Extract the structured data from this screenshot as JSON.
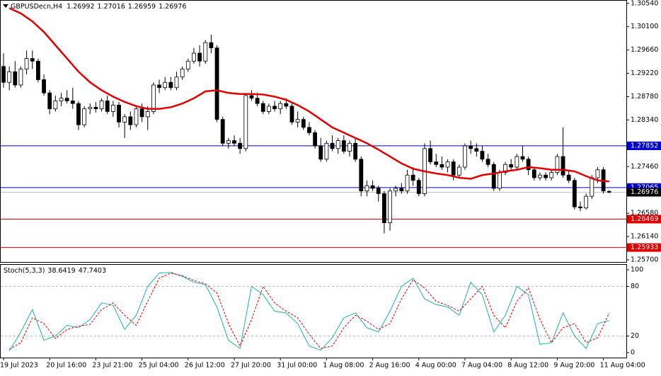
{
  "chart_data": {
    "type": "candlestick",
    "title": "GBPUSDecn,H4",
    "categories": [
      "19 Jul 2023",
      null,
      null,
      null,
      null,
      null,
      null,
      null,
      "20 Jul 16:00",
      null,
      null,
      null,
      null,
      null,
      null,
      null,
      "23 Jul 21:00",
      null,
      null,
      null,
      null,
      null,
      null,
      null,
      "25 Jul 04:00",
      null,
      null,
      null,
      null,
      null,
      null,
      null,
      "26 Jul 12:00",
      null,
      null,
      null,
      null,
      null,
      null,
      null,
      "27 Jul 20:00",
      null,
      null,
      null,
      null,
      null,
      null,
      null,
      "31 Jul 00:00",
      null,
      null,
      null,
      null,
      null,
      null,
      null,
      "1 Aug 08:00",
      null,
      null,
      null,
      null,
      null,
      null,
      null,
      "2 Aug 16:00",
      null,
      null,
      null,
      null,
      null,
      null,
      null,
      "4 Aug 00:00",
      null,
      null,
      null,
      null,
      null,
      null,
      null,
      "7 Aug 04:00",
      null,
      null,
      null,
      null,
      null,
      null,
      null,
      "8 Aug 12:00",
      null,
      null,
      null,
      null,
      null,
      null,
      null,
      "9 Aug 20:00",
      null,
      null,
      null,
      null,
      null,
      null,
      null,
      "11 Aug 04:00",
      null
    ],
    "ohlc": [
      [
        1.2935,
        1.296,
        1.2895,
        1.2905
      ],
      [
        1.2905,
        1.2935,
        1.289,
        1.2925
      ],
      [
        1.2925,
        1.2945,
        1.2895,
        1.29
      ],
      [
        1.29,
        1.2935,
        1.2895,
        1.293
      ],
      [
        1.293,
        1.2965,
        1.292,
        1.295
      ],
      [
        1.295,
        1.2965,
        1.293,
        1.2945
      ],
      [
        1.2945,
        1.295,
        1.2905,
        1.291
      ],
      [
        1.291,
        1.292,
        1.288,
        1.2885
      ],
      [
        1.2885,
        1.289,
        1.2845,
        1.2855
      ],
      [
        1.2855,
        1.288,
        1.285,
        1.287
      ],
      [
        1.287,
        1.2885,
        1.286,
        1.2875
      ],
      [
        1.2875,
        1.289,
        1.2865,
        1.287
      ],
      [
        1.287,
        1.2895,
        1.2855,
        1.2865
      ],
      [
        1.2865,
        1.287,
        1.2815,
        1.2825
      ],
      [
        1.2825,
        1.286,
        1.282,
        1.2855
      ],
      [
        1.2855,
        1.2865,
        1.2845,
        1.2858
      ],
      [
        1.2858,
        1.2868,
        1.2848,
        1.2855
      ],
      [
        1.2855,
        1.2875,
        1.285,
        1.287
      ],
      [
        1.287,
        1.288,
        1.2845,
        1.285
      ],
      [
        1.285,
        1.287,
        1.284,
        1.2862
      ],
      [
        1.2862,
        1.2868,
        1.282,
        1.283
      ],
      [
        1.283,
        1.2845,
        1.28,
        1.284
      ],
      [
        1.284,
        1.285,
        1.2815,
        1.2825
      ],
      [
        1.2825,
        1.286,
        1.282,
        1.2855
      ],
      [
        1.2855,
        1.2865,
        1.283,
        1.284
      ],
      [
        1.284,
        1.286,
        1.2815,
        1.285
      ],
      [
        1.285,
        1.2905,
        1.2845,
        1.29
      ],
      [
        1.29,
        1.291,
        1.2885,
        1.2895
      ],
      [
        1.2895,
        1.2915,
        1.289,
        1.2905
      ],
      [
        1.2905,
        1.2915,
        1.289,
        1.2895
      ],
      [
        1.2895,
        1.2925,
        1.289,
        1.2915
      ],
      [
        1.2915,
        1.2935,
        1.291,
        1.293
      ],
      [
        1.293,
        1.295,
        1.2925,
        1.2945
      ],
      [
        1.2945,
        1.297,
        1.294,
        1.296
      ],
      [
        1.296,
        1.2975,
        1.2935,
        1.2945
      ],
      [
        1.2945,
        1.2985,
        1.294,
        1.298
      ],
      [
        1.298,
        1.2995,
        1.296,
        1.297
      ],
      [
        1.297,
        1.2975,
        1.283,
        1.2835
      ],
      [
        1.2835,
        1.284,
        1.2785,
        1.279
      ],
      [
        1.279,
        1.28,
        1.278,
        1.2795
      ],
      [
        1.2795,
        1.2805,
        1.2785,
        1.279
      ],
      [
        1.279,
        1.28,
        1.277,
        1.278
      ],
      [
        1.278,
        1.2885,
        1.2775,
        1.288
      ],
      [
        1.288,
        1.289,
        1.287,
        1.2875
      ],
      [
        1.2875,
        1.2885,
        1.286,
        1.2865
      ],
      [
        1.2865,
        1.287,
        1.2845,
        1.285
      ],
      [
        1.285,
        1.2865,
        1.2845,
        1.286
      ],
      [
        1.286,
        1.287,
        1.285,
        1.2855
      ],
      [
        1.2855,
        1.287,
        1.2845,
        1.2865
      ],
      [
        1.2865,
        1.2875,
        1.2855,
        1.286
      ],
      [
        1.286,
        1.2865,
        1.2825,
        1.283
      ],
      [
        1.283,
        1.285,
        1.282,
        1.2835
      ],
      [
        1.2835,
        1.284,
        1.2815,
        1.282
      ],
      [
        1.282,
        1.283,
        1.2805,
        1.281
      ],
      [
        1.281,
        1.2815,
        1.278,
        1.2785
      ],
      [
        1.2785,
        1.28,
        1.2755,
        1.276
      ],
      [
        1.276,
        1.2795,
        1.2755,
        1.279
      ],
      [
        1.279,
        1.2805,
        1.2775,
        1.278
      ],
      [
        1.278,
        1.28,
        1.277,
        1.2795
      ],
      [
        1.2795,
        1.2805,
        1.277,
        1.2775
      ],
      [
        1.2775,
        1.2795,
        1.2765,
        1.279
      ],
      [
        1.279,
        1.28,
        1.2755,
        1.276
      ],
      [
        1.276,
        1.2765,
        1.269,
        1.27
      ],
      [
        1.27,
        1.272,
        1.269,
        1.271
      ],
      [
        1.271,
        1.272,
        1.27,
        1.2705
      ],
      [
        1.2705,
        1.271,
        1.268,
        1.2695
      ],
      [
        1.2695,
        1.27,
        1.262,
        1.264
      ],
      [
        1.264,
        1.2705,
        1.2625,
        1.27
      ],
      [
        1.27,
        1.271,
        1.269,
        1.2705
      ],
      [
        1.2705,
        1.2715,
        1.2695,
        1.27
      ],
      [
        1.27,
        1.274,
        1.2695,
        1.273
      ],
      [
        1.273,
        1.2745,
        1.271,
        1.272
      ],
      [
        1.272,
        1.2725,
        1.269,
        1.2695
      ],
      [
        1.2695,
        1.279,
        1.269,
        1.278
      ],
      [
        1.278,
        1.2795,
        1.275,
        1.2755
      ],
      [
        1.2755,
        1.277,
        1.2745,
        1.275
      ],
      [
        1.275,
        1.2765,
        1.274,
        1.2745
      ],
      [
        1.2745,
        1.276,
        1.2735,
        1.2755
      ],
      [
        1.2755,
        1.276,
        1.272,
        1.273
      ],
      [
        1.273,
        1.275,
        1.2725,
        1.2745
      ],
      [
        1.2745,
        1.279,
        1.274,
        1.2785
      ],
      [
        1.2785,
        1.2795,
        1.277,
        1.278
      ],
      [
        1.278,
        1.279,
        1.2765,
        1.2775
      ],
      [
        1.2775,
        1.2785,
        1.2755,
        1.276
      ],
      [
        1.276,
        1.277,
        1.2745,
        1.275
      ],
      [
        1.275,
        1.2755,
        1.27,
        1.2705
      ],
      [
        1.2705,
        1.274,
        1.27,
        1.2735
      ],
      [
        1.2735,
        1.2755,
        1.273,
        1.275
      ],
      [
        1.275,
        1.276,
        1.274,
        1.2745
      ],
      [
        1.2745,
        1.277,
        1.274,
        1.2765
      ],
      [
        1.2765,
        1.2785,
        1.2755,
        1.276
      ],
      [
        1.276,
        1.2765,
        1.273,
        1.274
      ],
      [
        1.274,
        1.2745,
        1.272,
        1.2725
      ],
      [
        1.2725,
        1.2735,
        1.272,
        1.273
      ],
      [
        1.273,
        1.2735,
        1.272,
        1.2725
      ],
      [
        1.2725,
        1.274,
        1.272,
        1.2735
      ],
      [
        1.2735,
        1.277,
        1.273,
        1.2765
      ],
      [
        1.2765,
        1.282,
        1.2725,
        1.273
      ],
      [
        1.273,
        1.274,
        1.2715,
        1.272
      ],
      [
        1.272,
        1.2725,
        1.2665,
        1.267
      ],
      [
        1.267,
        1.268,
        1.2662,
        1.2668
      ],
      [
        1.2668,
        1.2695,
        1.2665,
        1.269
      ],
      [
        1.269,
        1.273,
        1.2685,
        1.2725
      ],
      [
        1.2725,
        1.2745,
        1.2715,
        1.274
      ],
      [
        1.274,
        1.2745,
        1.2695,
        1.27
      ],
      [
        1.26992,
        1.27016,
        1.26959,
        1.26976
      ]
    ],
    "up_color": "#ffffff",
    "down_color": "#000000",
    "ma": {
      "color": "#e00000",
      "x": [
        1,
        3,
        5,
        7,
        9,
        11,
        13,
        15,
        17,
        19,
        21,
        23,
        25,
        27,
        29,
        31,
        33,
        35,
        37,
        39,
        41,
        43,
        45,
        47,
        49,
        51,
        53,
        55,
        57,
        59,
        61,
        63,
        65,
        67,
        69,
        71,
        73,
        75,
        77,
        79,
        81,
        83,
        85,
        87,
        89,
        91,
        93,
        95,
        97,
        99,
        101,
        103,
        105
      ],
      "values": [
        1.3045,
        1.3035,
        1.302,
        1.3,
        1.2975,
        1.295,
        1.2925,
        1.2905,
        1.289,
        1.2878,
        1.2868,
        1.286,
        1.2855,
        1.2855,
        1.2858,
        1.2865,
        1.2875,
        1.2888,
        1.289,
        1.2885,
        1.2883,
        1.2883,
        1.2882,
        1.2878,
        1.2872,
        1.2862,
        1.285,
        1.2835,
        1.282,
        1.281,
        1.28,
        1.279,
        1.2778,
        1.2765,
        1.2752,
        1.2742,
        1.2737,
        1.2733,
        1.273,
        1.2725,
        1.2723,
        1.273,
        1.2733,
        1.2737,
        1.274,
        1.2745,
        1.2743,
        1.274,
        1.274,
        1.2737,
        1.2728,
        1.272,
        1.2718
      ]
    },
    "price_levels": [
      {
        "value": 1.27852,
        "color": "#0000cd"
      },
      {
        "value": 1.27065,
        "color": "#0000cd"
      },
      {
        "value": 1.26469,
        "color": "#e00000"
      },
      {
        "value": 1.25933,
        "color": "#e00000"
      }
    ],
    "current_price_color": "#c0c0c0",
    "ylim": [
      1.2566,
      1.3059
    ],
    "yticks": [
      {
        "value": 1.3054,
        "label": "1.30540"
      },
      {
        "value": 1.301,
        "label": "1.30100"
      },
      {
        "value": 1.2966,
        "label": "1.29660"
      },
      {
        "value": 1.2922,
        "label": "1.29220"
      },
      {
        "value": 1.2878,
        "label": "1.28780"
      },
      {
        "value": 1.2834,
        "label": "1.28340"
      },
      {
        "value": 1.2746,
        "label": "1.27460"
      },
      {
        "value": 1.2658,
        "label": "1.26580"
      },
      {
        "value": 1.2614,
        "label": "1.26140"
      },
      {
        "value": 1.257,
        "label": "1.25700"
      }
    ],
    "indicator": {
      "title": "Stoch(5,3,3)",
      "x": [
        1,
        3,
        5,
        7,
        9,
        11,
        13,
        15,
        17,
        19,
        21,
        23,
        25,
        27,
        29,
        31,
        33,
        35,
        37,
        39,
        41,
        43,
        45,
        47,
        49,
        51,
        53,
        55,
        57,
        59,
        61,
        63,
        65,
        67,
        69,
        71,
        73,
        75,
        77,
        79,
        81,
        83,
        85,
        87,
        89,
        91,
        93,
        95,
        97,
        99,
        101,
        103,
        105
      ],
      "series": [
        {
          "color": "#20b2aa",
          "values": [
            2,
            25,
            52,
            15,
            20,
            33,
            30,
            40,
            60,
            57,
            28,
            45,
            80,
            96,
            97,
            92,
            85,
            82,
            55,
            15,
            5,
            80,
            70,
            50,
            48,
            35,
            8,
            3,
            18,
            42,
            48,
            30,
            25,
            50,
            80,
            90,
            65,
            58,
            55,
            45,
            85,
            70,
            25,
            45,
            80,
            70,
            10,
            12,
            48,
            20,
            5,
            35,
            38.6419
          ]
        },
        {
          "color": "#e00000",
          "values": [
            4,
            12,
            42,
            35,
            17,
            28,
            32,
            34,
            52,
            60,
            45,
            33,
            62,
            90,
            96,
            93,
            87,
            83,
            72,
            35,
            8,
            40,
            80,
            60,
            50,
            42,
            22,
            5,
            8,
            30,
            45,
            38,
            28,
            35,
            65,
            88,
            78,
            62,
            57,
            50,
            65,
            80,
            45,
            30,
            62,
            78,
            40,
            12,
            30,
            35,
            12,
            18,
            47.7403
          ]
        }
      ],
      "levels": [
        80,
        20
      ],
      "ylim": [
        -6,
        106
      ],
      "yticks": [
        100,
        80,
        20,
        0
      ]
    }
  }
}
